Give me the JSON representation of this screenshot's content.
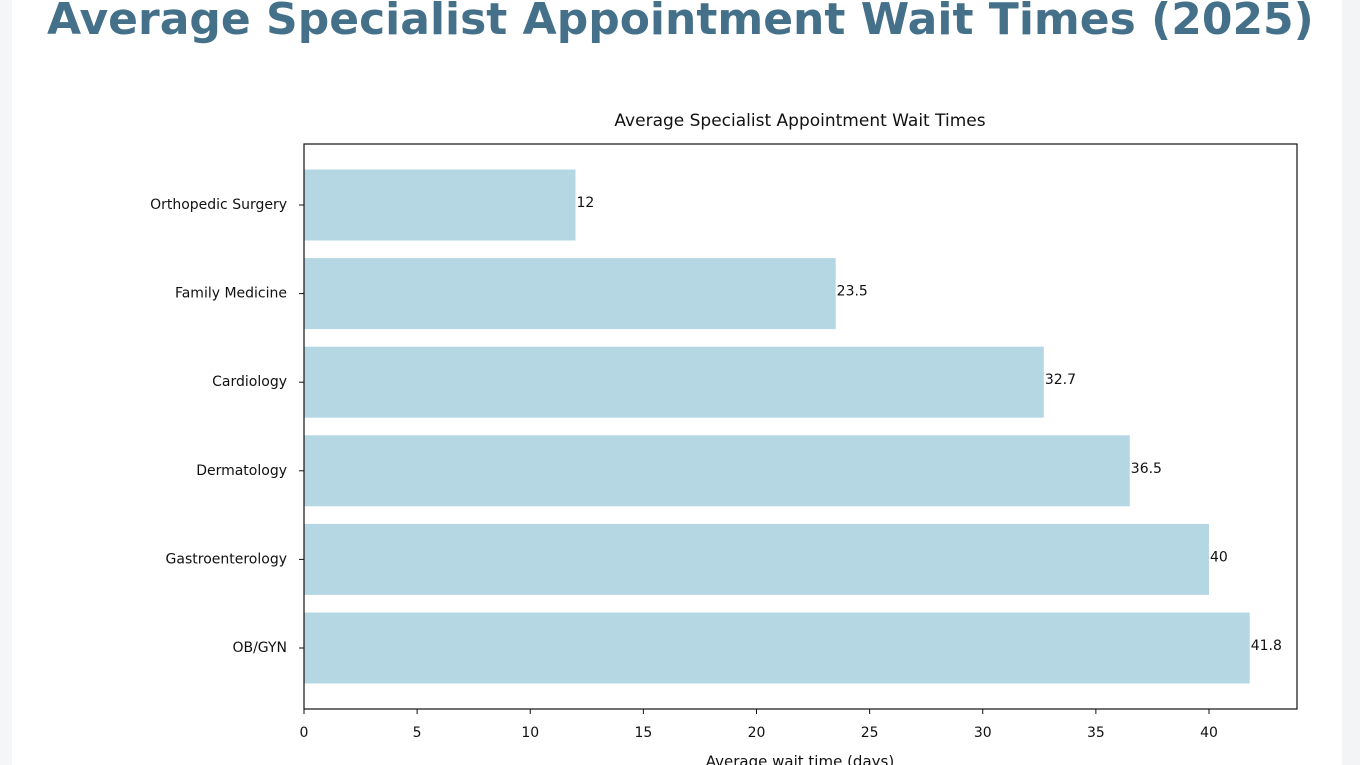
{
  "page": {
    "title": "Average Specialist Appointment Wait Times (2025)"
  },
  "chart_data": {
    "type": "barh",
    "title": "Average Specialist Appointment Wait Times",
    "x_label": "Average wait time (days)",
    "categories": [
      "Orthopedic Surgery",
      "Family Medicine",
      "Cardiology",
      "Dermatology",
      "Gastroenterology",
      "OB/GYN"
    ],
    "values": [
      12,
      23.5,
      32.7,
      36.5,
      40,
      41.8
    ],
    "color": "#b5d7e3",
    "xlim": [
      0,
      43.89
    ],
    "xticks": [
      0,
      5,
      10,
      15,
      20,
      25,
      30,
      35,
      40
    ],
    "grid": false
  }
}
